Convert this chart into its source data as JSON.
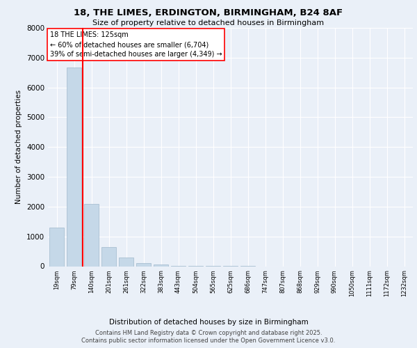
{
  "title_line1": "18, THE LIMES, ERDINGTON, BIRMINGHAM, B24 8AF",
  "title_line2": "Size of property relative to detached houses in Birmingham",
  "xlabel": "Distribution of detached houses by size in Birmingham",
  "ylabel": "Number of detached properties",
  "categories": [
    "19sqm",
    "79sqm",
    "140sqm",
    "201sqm",
    "261sqm",
    "322sqm",
    "383sqm",
    "443sqm",
    "504sqm",
    "565sqm",
    "625sqm",
    "686sqm",
    "747sqm",
    "807sqm",
    "868sqm",
    "929sqm",
    "990sqm",
    "1050sqm",
    "1111sqm",
    "1172sqm",
    "1232sqm"
  ],
  "values": [
    1300,
    6680,
    2100,
    650,
    290,
    105,
    65,
    20,
    10,
    5,
    2,
    1,
    0,
    0,
    0,
    0,
    0,
    0,
    0,
    0,
    0
  ],
  "bar_color": "#c5d8e8",
  "bar_edge_color": "#a0b8cc",
  "annotation_title": "18 THE LIMES: 125sqm",
  "annotation_line1": "← 60% of detached houses are smaller (6,704)",
  "annotation_line2": "39% of semi-detached houses are larger (4,349) →",
  "ylim": [
    0,
    8000
  ],
  "yticks": [
    0,
    1000,
    2000,
    3000,
    4000,
    5000,
    6000,
    7000,
    8000
  ],
  "footer_line1": "Contains HM Land Registry data © Crown copyright and database right 2025.",
  "footer_line2": "Contains public sector information licensed under the Open Government Licence v3.0.",
  "bg_color": "#eaf0f8",
  "plot_bg_color": "#eaf0f8"
}
